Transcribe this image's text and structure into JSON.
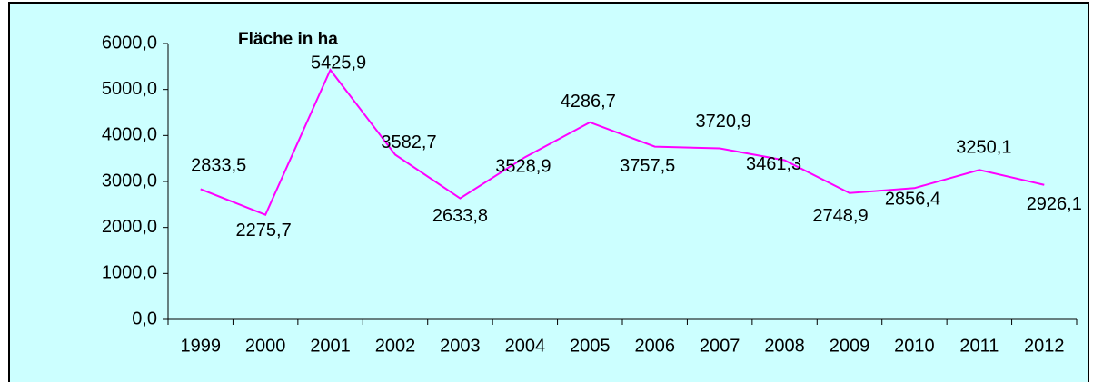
{
  "chart_data": {
    "type": "line",
    "title": "Fläche in ha",
    "categories": [
      "1999",
      "2000",
      "2001",
      "2002",
      "2003",
      "2004",
      "2005",
      "2006",
      "2007",
      "2008",
      "2009",
      "2010",
      "2011",
      "2012"
    ],
    "series": [
      {
        "color": "#ff00ff",
        "values": [
          2833.5,
          2275.7,
          5425.9,
          3582.7,
          2633.8,
          3528.9,
          4286.7,
          3757.5,
          3720.9,
          3461.3,
          2748.9,
          2856.4,
          3250.1,
          2926.1
        ],
        "value_labels": [
          "2833,5",
          "2275,7",
          "5425,9",
          "3582,7",
          "2633,8",
          "3528,9",
          "4286,7",
          "3757,5",
          "3720,9",
          "3461,3",
          "2748,9",
          "2856,4",
          "3250,1",
          "2926,1"
        ]
      }
    ],
    "ylim": [
      0,
      6000
    ],
    "yticks": [
      {
        "value": 0,
        "label": "0,0"
      },
      {
        "value": 1000,
        "label": "1000,0"
      },
      {
        "value": 2000,
        "label": "2000,0"
      },
      {
        "value": 3000,
        "label": "3000,0"
      },
      {
        "value": 4000,
        "label": "4000,0"
      },
      {
        "value": 5000,
        "label": "5000,0"
      },
      {
        "value": 6000,
        "label": "6000,0"
      }
    ],
    "grid": false
  }
}
